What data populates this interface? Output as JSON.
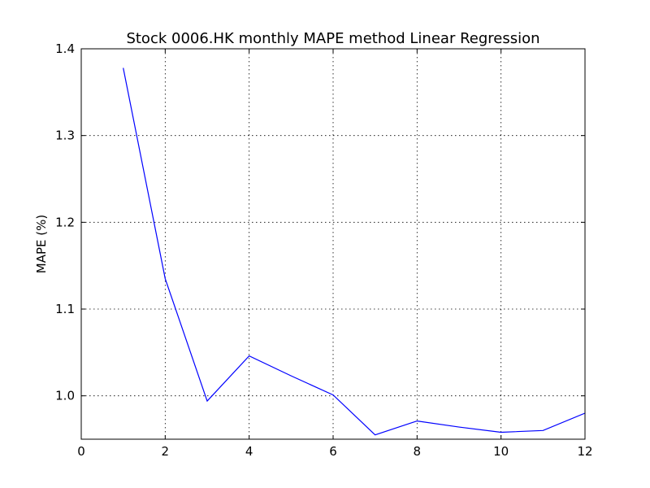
{
  "chart_data": {
    "type": "line",
    "title": "Stock 0006.HK monthly MAPE method Linear Regression",
    "xlabel": "",
    "ylabel": "MAPE (%)",
    "xlim": [
      0,
      12
    ],
    "ylim": [
      0.95,
      1.4
    ],
    "xticks": [
      "0",
      "2",
      "4",
      "6",
      "8",
      "10",
      "12"
    ],
    "yticks": [
      "1.0",
      "1.1",
      "1.2",
      "1.3",
      "1.4"
    ],
    "grid": true,
    "line_color": "#0000ff",
    "series": [
      {
        "x": [
          1,
          2,
          3,
          4,
          5,
          6,
          7,
          8,
          9,
          10,
          11,
          12
        ],
        "values": [
          1.378,
          1.135,
          0.994,
          1.046,
          1.023,
          1.001,
          0.955,
          0.971,
          0.964,
          0.958,
          0.96,
          0.98
        ]
      }
    ]
  }
}
